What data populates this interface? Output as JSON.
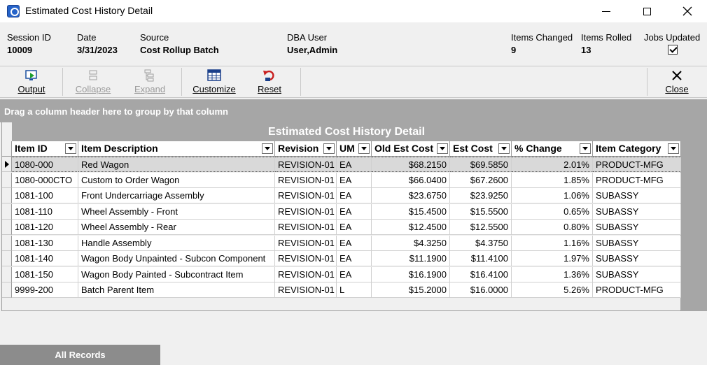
{
  "window": {
    "title": "Estimated Cost History Detail"
  },
  "header": {
    "session_id": {
      "label": "Session ID",
      "value": "10009"
    },
    "date": {
      "label": "Date",
      "value": "3/31/2023"
    },
    "source": {
      "label": "Source",
      "value": "Cost Rollup Batch"
    },
    "dba_user": {
      "label": "DBA User",
      "value": "User,Admin"
    },
    "items_changed": {
      "label": "Items Changed",
      "value": "9"
    },
    "items_rolled": {
      "label": "Items Rolled",
      "value": "13"
    },
    "jobs_updated": {
      "label": "Jobs Updated",
      "checked": true
    }
  },
  "toolbar": {
    "output": {
      "label": "Output",
      "icon": "output-icon",
      "enabled": true
    },
    "collapse": {
      "label": "Collapse",
      "icon": "collapse-icon",
      "enabled": false
    },
    "expand": {
      "label": "Expand",
      "icon": "expand-icon",
      "enabled": false
    },
    "customize": {
      "label": "Customize",
      "icon": "grid-icon",
      "enabled": true
    },
    "reset": {
      "label": "Reset",
      "icon": "reset-icon",
      "enabled": true
    },
    "close": {
      "label": "Close",
      "icon": "close-icon",
      "enabled": true
    }
  },
  "groupbar": {
    "text": "Drag a column header here to group by that column"
  },
  "grid": {
    "title": "Estimated Cost History Detail",
    "columns": [
      {
        "key": "item_id",
        "label": "Item ID"
      },
      {
        "key": "desc",
        "label": "Item Description"
      },
      {
        "key": "revision",
        "label": "Revision"
      },
      {
        "key": "um",
        "label": "UM"
      },
      {
        "key": "old_cost",
        "label": "Old Est Cost"
      },
      {
        "key": "est_cost",
        "label": "Est Cost"
      },
      {
        "key": "pct",
        "label": "% Change"
      },
      {
        "key": "category",
        "label": "Item Category"
      }
    ],
    "rows": [
      [
        "1080-000",
        "Red Wagon",
        "REVISION-01",
        "EA",
        "$68.2150",
        "$69.5850",
        "2.01%",
        "PRODUCT-MFG"
      ],
      [
        "1080-000CTO",
        "Custom to Order Wagon",
        "REVISION-01",
        "EA",
        "$66.0400",
        "$67.2600",
        "1.85%",
        "PRODUCT-MFG"
      ],
      [
        "1081-100",
        "Front Undercarriage Assembly",
        "REVISION-01",
        "EA",
        "$23.6750",
        "$23.9250",
        "1.06%",
        "SUBASSY"
      ],
      [
        "1081-110",
        "Wheel Assembly - Front",
        "REVISION-01",
        "EA",
        "$15.4500",
        "$15.5500",
        "0.65%",
        "SUBASSY"
      ],
      [
        "1081-120",
        "Wheel Assembly - Rear",
        "REVISION-01",
        "EA",
        "$12.4500",
        "$12.5500",
        "0.80%",
        "SUBASSY"
      ],
      [
        "1081-130",
        "Handle Assembly",
        "REVISION-01",
        "EA",
        "$4.3250",
        "$4.3750",
        "1.16%",
        "SUBASSY"
      ],
      [
        "1081-140",
        "Wagon Body Unpainted - Subcon Component",
        "REVISION-01",
        "EA",
        "$11.1900",
        "$11.4100",
        "1.97%",
        "SUBASSY"
      ],
      [
        "1081-150",
        "Wagon Body Painted -  Subcontract Item",
        "REVISION-01",
        "EA",
        "$16.1900",
        "$16.4100",
        "1.36%",
        "SUBASSY"
      ],
      [
        "9999-200",
        "Batch Parent Item",
        "REVISION-01",
        "L",
        "$15.2000",
        "$16.0000",
        "5.26%",
        "PRODUCT-MFG"
      ]
    ],
    "selected_row": 0
  },
  "tabs": {
    "all_records": "All Records"
  }
}
